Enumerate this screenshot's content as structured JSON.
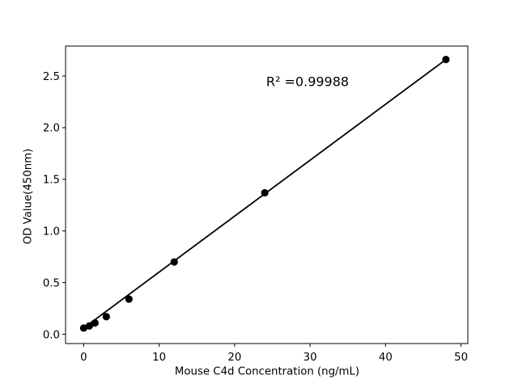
{
  "chart_data": {
    "type": "scatter",
    "title": "",
    "xlabel": "Mouse C4d Concentration (ng/mL)",
    "ylabel": "OD Value(450nm)",
    "annotation_text": "R² =0.99988",
    "r_squared": 0.99988,
    "x": [
      0,
      0.75,
      1.5,
      3,
      6,
      12,
      24,
      48
    ],
    "y": [
      0.06,
      0.08,
      0.11,
      0.17,
      0.34,
      0.7,
      1.37,
      2.66
    ],
    "fit_line": {
      "x": [
        0,
        48
      ],
      "y": [
        0.06,
        2.66
      ]
    },
    "x_ticks": [
      0,
      10,
      20,
      30,
      40,
      50
    ],
    "x_tick_labels": [
      "0",
      "10",
      "20",
      "30",
      "40",
      "50"
    ],
    "y_ticks": [
      0.0,
      0.5,
      1.0,
      1.5,
      2.0,
      2.5
    ],
    "y_tick_labels": [
      "0.0",
      "0.5",
      "1.0",
      "1.5",
      "2.0",
      "2.5"
    ],
    "xlim": [
      -2.4,
      50.9
    ],
    "ylim": [
      -0.09,
      2.79
    ],
    "grid": false,
    "legend": null,
    "colors": {
      "line": "#000000",
      "marker": "#000000",
      "spine": "#000000",
      "text": "#000000",
      "background": "#ffffff"
    }
  }
}
